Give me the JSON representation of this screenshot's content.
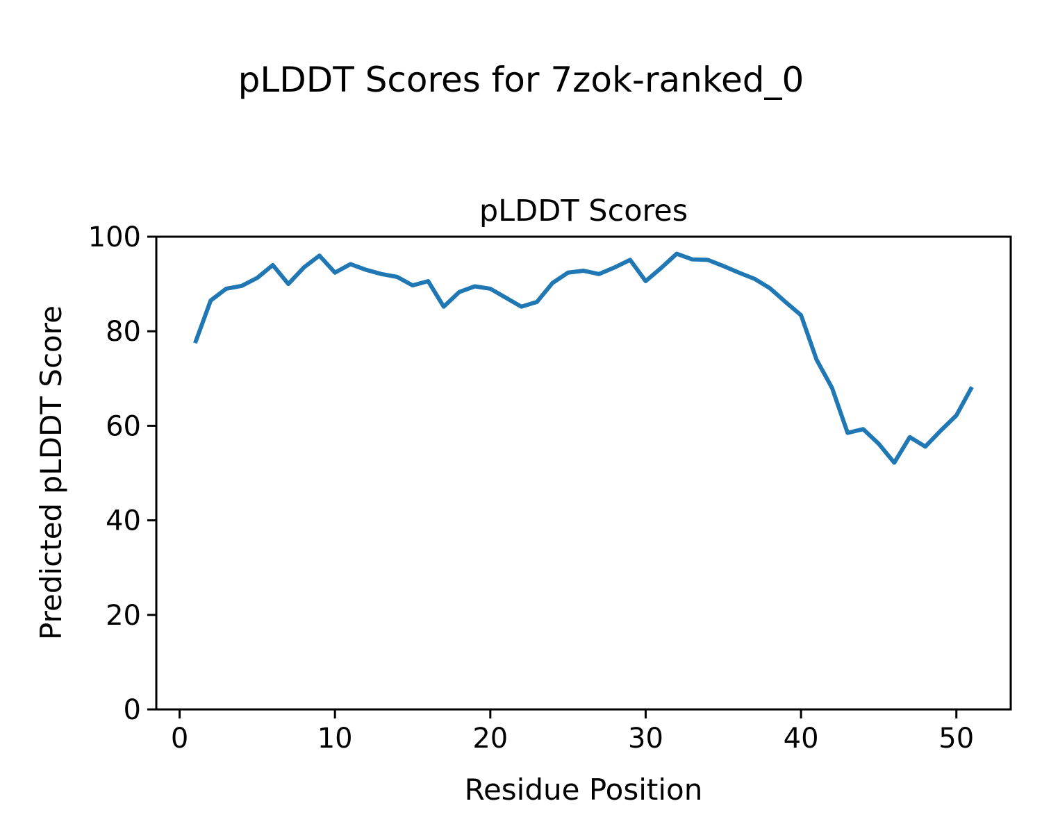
{
  "figure": {
    "suptitle": "pLDDT Scores for 7zok-ranked_0"
  },
  "chart_data": {
    "type": "line",
    "title": "pLDDT Scores",
    "xlabel": "Residue Position",
    "ylabel": "Predicted pLDDT Score",
    "legend": false,
    "grid": false,
    "line_color": "#1f77b4",
    "xlim": [
      -1.5,
      53.5
    ],
    "ylim": [
      0,
      100
    ],
    "xticks": [
      0,
      10,
      20,
      30,
      40,
      50
    ],
    "yticks": [
      0,
      20,
      40,
      60,
      80,
      100
    ],
    "x": [
      1,
      2,
      3,
      4,
      5,
      6,
      7,
      8,
      9,
      10,
      11,
      12,
      13,
      14,
      15,
      16,
      17,
      18,
      19,
      20,
      21,
      22,
      23,
      24,
      25,
      26,
      27,
      28,
      29,
      30,
      31,
      32,
      33,
      34,
      35,
      36,
      37,
      38,
      39,
      40,
      41,
      42,
      43,
      44,
      45,
      46,
      47,
      48,
      49,
      50,
      51
    ],
    "values": [
      77.5,
      86.5,
      89.0,
      89.6,
      91.3,
      94.0,
      90.0,
      93.5,
      96.0,
      92.4,
      94.2,
      93.0,
      92.1,
      91.5,
      89.7,
      90.6,
      85.2,
      88.3,
      89.5,
      89.0,
      87.1,
      85.2,
      86.2,
      90.2,
      92.4,
      92.8,
      92.1,
      93.5,
      95.1,
      90.6,
      93.4,
      96.4,
      95.2,
      95.1,
      93.8,
      92.4,
      91.1,
      89.1,
      86.2,
      83.4,
      74.0,
      68.0,
      58.5,
      59.3,
      56.2,
      52.2,
      57.6,
      55.6,
      59.0,
      62.2,
      68.2
    ]
  }
}
